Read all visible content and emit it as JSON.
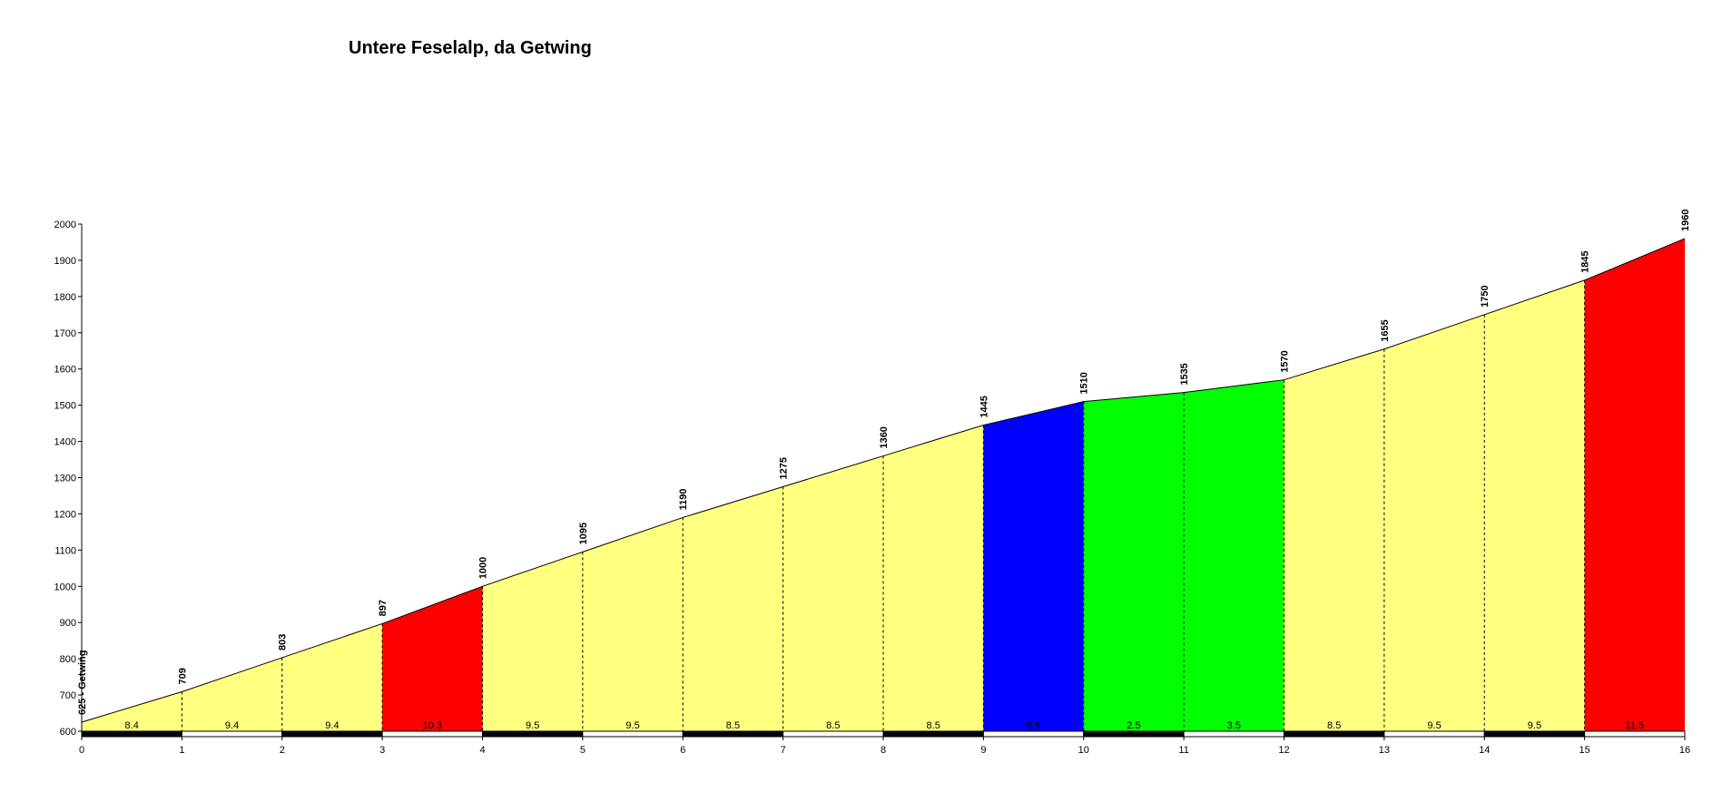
{
  "chart_data": {
    "type": "area",
    "title": "Untere Feselalp, da Getwing",
    "xlabel": "",
    "ylabel": "",
    "xlim": [
      0,
      16
    ],
    "ylim": [
      600,
      2000
    ],
    "x_ticks": [
      "0",
      "1",
      "2",
      "3",
      "4",
      "5",
      "6",
      "7",
      "8",
      "9",
      "10",
      "11",
      "12",
      "13",
      "14",
      "15",
      "16"
    ],
    "y_ticks": [
      "600",
      "700",
      "800",
      "900",
      "1000",
      "1100",
      "1200",
      "1300",
      "1400",
      "1500",
      "1600",
      "1700",
      "1800",
      "1900",
      "2000"
    ],
    "points": [
      {
        "x": 0,
        "elevation": 625,
        "label": "625 - Getwing"
      },
      {
        "x": 1,
        "elevation": 709,
        "label": "709"
      },
      {
        "x": 2,
        "elevation": 803,
        "label": "803"
      },
      {
        "x": 3,
        "elevation": 897,
        "label": "897"
      },
      {
        "x": 4,
        "elevation": 1000,
        "label": "1000"
      },
      {
        "x": 5,
        "elevation": 1095,
        "label": "1095"
      },
      {
        "x": 6,
        "elevation": 1190,
        "label": "1190"
      },
      {
        "x": 7,
        "elevation": 1275,
        "label": "1275"
      },
      {
        "x": 8,
        "elevation": 1360,
        "label": "1360"
      },
      {
        "x": 9,
        "elevation": 1445,
        "label": "1445"
      },
      {
        "x": 10,
        "elevation": 1510,
        "label": "1510"
      },
      {
        "x": 11,
        "elevation": 1535,
        "label": "1535"
      },
      {
        "x": 12,
        "elevation": 1570,
        "label": "1570"
      },
      {
        "x": 13,
        "elevation": 1655,
        "label": "1655"
      },
      {
        "x": 14,
        "elevation": 1750,
        "label": "1750"
      },
      {
        "x": 15,
        "elevation": 1845,
        "label": "1845"
      },
      {
        "x": 16,
        "elevation": 1960,
        "label": "1960"
      }
    ],
    "segments": [
      {
        "gradient": "8.4",
        "color": "#ffff80"
      },
      {
        "gradient": "9.4",
        "color": "#ffff80"
      },
      {
        "gradient": "9.4",
        "color": "#ffff80"
      },
      {
        "gradient": "10.3",
        "color": "#ff0000"
      },
      {
        "gradient": "9.5",
        "color": "#ffff80"
      },
      {
        "gradient": "9.5",
        "color": "#ffff80"
      },
      {
        "gradient": "8.5",
        "color": "#ffff80"
      },
      {
        "gradient": "8.5",
        "color": "#ffff80"
      },
      {
        "gradient": "8.5",
        "color": "#ffff80"
      },
      {
        "gradient": "6.5",
        "color": "#0000ff"
      },
      {
        "gradient": "2.5",
        "color": "#00ff00"
      },
      {
        "gradient": "3.5",
        "color": "#00ff00"
      },
      {
        "gradient": "8.5",
        "color": "#ffff80"
      },
      {
        "gradient": "9.5",
        "color": "#ffff80"
      },
      {
        "gradient": "9.5",
        "color": "#ffff80"
      },
      {
        "gradient": "11.5",
        "color": "#ff0000"
      }
    ],
    "grid": false,
    "legend": "none"
  }
}
